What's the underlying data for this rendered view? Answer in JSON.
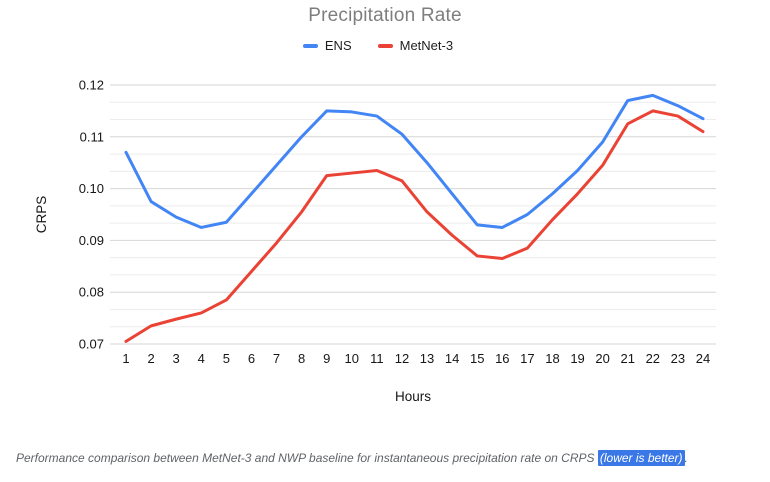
{
  "title": "Precipitation Rate",
  "legend": {
    "items": [
      {
        "label": "ENS",
        "color": "#4285f4"
      },
      {
        "label": "MetNet-3",
        "color": "#ea4335"
      }
    ]
  },
  "caption": {
    "text": "Performance comparison between MetNet-3 and NWP baseline for instantaneous precipitation rate on CRPS ",
    "highlight": "(lower is better)",
    "suffix": "."
  },
  "colors": {
    "title_text": "#7e7e7e",
    "axis_text": "#161616",
    "grid_major": "#d6d6d6",
    "grid_minor": "#ececec",
    "caption_text": "#5f6368",
    "caption_highlight_bg": "#3b78e7",
    "caption_highlight_fg": "#ffffff"
  },
  "chart_data": {
    "type": "line",
    "title": "Precipitation Rate",
    "xlabel": "Hours",
    "ylabel": "CRPS",
    "x": [
      1,
      2,
      3,
      4,
      5,
      6,
      7,
      8,
      9,
      10,
      11,
      12,
      13,
      14,
      15,
      16,
      17,
      18,
      19,
      20,
      21,
      22,
      23,
      24
    ],
    "series": [
      {
        "name": "ENS",
        "color": "#4285f4",
        "values": [
          0.107,
          0.0975,
          0.0945,
          0.0925,
          0.0935,
          0.099,
          0.1045,
          0.11,
          0.115,
          0.1148,
          0.114,
          0.1105,
          0.105,
          0.099,
          0.093,
          0.0925,
          0.095,
          0.099,
          0.1035,
          0.109,
          0.117,
          0.118,
          0.116,
          0.1135
        ]
      },
      {
        "name": "MetNet-3",
        "color": "#ea4335",
        "values": [
          0.0705,
          0.0735,
          0.0748,
          0.076,
          0.0785,
          0.084,
          0.0895,
          0.0955,
          0.1025,
          0.103,
          0.1035,
          0.1015,
          0.0955,
          0.091,
          0.087,
          0.0865,
          0.0885,
          0.094,
          0.099,
          0.1045,
          0.1125,
          0.115,
          0.114,
          0.111
        ]
      }
    ],
    "ylim": [
      0.07,
      0.12
    ],
    "yticks": [
      0.07,
      0.08,
      0.09,
      0.1,
      0.11,
      0.12
    ],
    "minor_gridlines_between_majors": 2,
    "grid": "horizontal",
    "legend_position": "top"
  }
}
